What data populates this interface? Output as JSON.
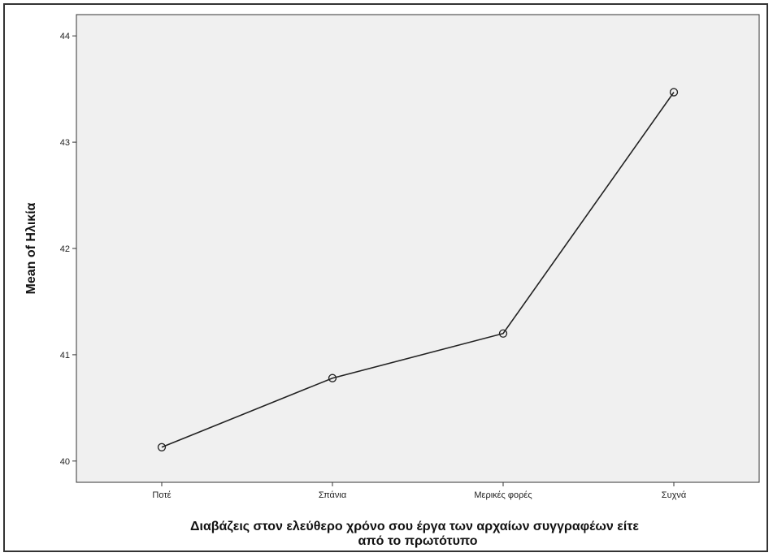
{
  "chart_data": {
    "type": "line",
    "categories": [
      "Ποτέ",
      "Σπάνια",
      "Μερικές φορές",
      "Συχνά"
    ],
    "series": [
      {
        "values": [
          40.13,
          40.78,
          41.2,
          43.47
        ]
      }
    ],
    "ylabel": "Mean of Ηλικία",
    "xlabel_lines": [
      "Διαβάζεις στον ελεύθερο χρόνο σου έργα των αρχαίων συγγραφέων είτε",
      "από το πρωτότυπο"
    ],
    "ylim": [
      39.8,
      44.2
    ],
    "yticks": [
      "40",
      "41",
      "42",
      "43",
      "44"
    ],
    "grid": false,
    "markers": "open-circle",
    "colors": {
      "plot_background": "#f0f0f0",
      "line": "#222222",
      "axis": "#333333"
    }
  }
}
